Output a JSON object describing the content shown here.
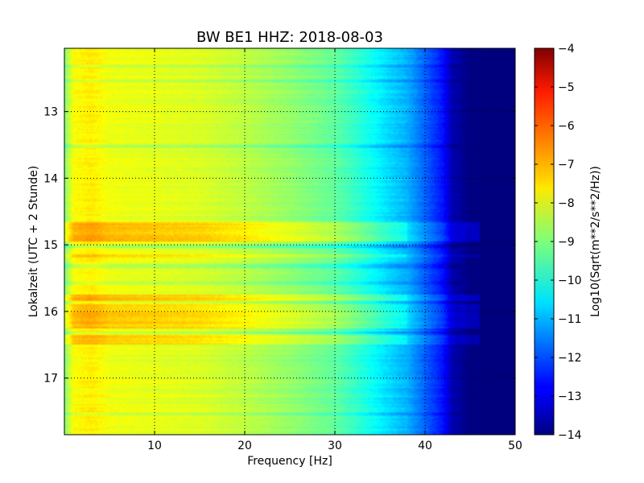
{
  "chart_data": {
    "type": "heatmap",
    "title": "BW BE1 HHZ: 2018-08-03",
    "xlabel": "Frequency [Hz]",
    "ylabel": "Lokalzeit (UTC + 2 Stunde)",
    "xlim": [
      0,
      50
    ],
    "ylim": [
      12.05,
      17.85
    ],
    "y_inverted": true,
    "x_ticks": [
      10,
      20,
      30,
      40,
      50
    ],
    "x_tick_labels": [
      "10",
      "20",
      "30",
      "40",
      "50"
    ],
    "y_ticks": [
      13,
      14,
      15,
      16,
      17
    ],
    "y_tick_labels": [
      "13",
      "14",
      "15",
      "16",
      "17"
    ],
    "grid": true,
    "colormap": "jet",
    "colorbar": {
      "label": "Log10(Sqrt(m**2/s**2/Hz))",
      "range": [
        -14,
        -4
      ],
      "ticks": [
        -4,
        -5,
        -6,
        -7,
        -8,
        -9,
        -10,
        -11,
        -12,
        -13,
        -14
      ],
      "tick_labels": [
        "−4",
        "−5",
        "−6",
        "−7",
        "−8",
        "−9",
        "−10",
        "−11",
        "−12",
        "−13",
        "−14"
      ]
    },
    "frequency_profile_hz": [
      0,
      1,
      3,
      5,
      10,
      15,
      20,
      25,
      30,
      33,
      36,
      38,
      40,
      42,
      43,
      45,
      50
    ],
    "frequency_profile_value": [
      -9.0,
      -7.8,
      -7.6,
      -7.9,
      -8.0,
      -8.1,
      -8.4,
      -8.8,
      -9.3,
      -9.9,
      -10.6,
      -11.0,
      -11.8,
      -12.6,
      -13.5,
      -14.0,
      -14.0
    ],
    "high_noise_bands_local_time": [
      {
        "from": 14.65,
        "to": 14.95,
        "delta": 0.8
      },
      {
        "from": 15.15,
        "to": 15.2,
        "delta": 0.5
      },
      {
        "from": 15.75,
        "to": 15.85,
        "delta": 0.8
      },
      {
        "from": 15.9,
        "to": 16.25,
        "delta": 0.7
      },
      {
        "from": 16.35,
        "to": 16.5,
        "delta": 0.6
      }
    ],
    "low_noise_bands_local_time": [
      {
        "from": 12.3,
        "to": 12.35,
        "delta": -0.4
      },
      {
        "from": 12.5,
        "to": 12.55,
        "delta": -0.4
      },
      {
        "from": 13.5,
        "to": 13.55,
        "delta": -0.5
      },
      {
        "from": 15.0,
        "to": 15.05,
        "delta": -0.6
      },
      {
        "from": 15.3,
        "to": 15.35,
        "delta": -0.5
      },
      {
        "from": 15.55,
        "to": 15.6,
        "delta": -0.5
      },
      {
        "from": 16.3,
        "to": 16.33,
        "delta": -0.5
      },
      {
        "from": 17.5,
        "to": 17.55,
        "delta": -0.4
      }
    ],
    "colors": {
      "background": "#ffffff",
      "grid": "#000000"
    }
  }
}
